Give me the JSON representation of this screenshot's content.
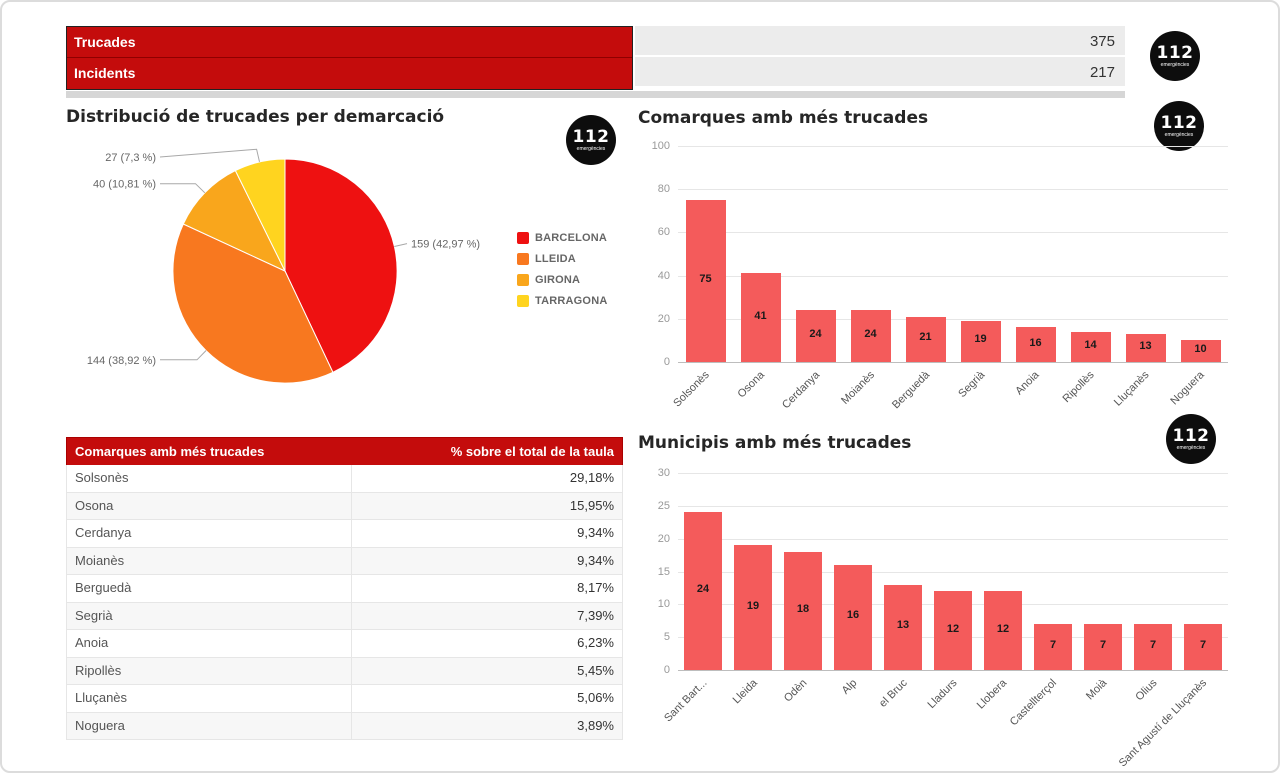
{
  "logo": {
    "text": "112",
    "subtext": "emergències"
  },
  "summary": {
    "rows": [
      {
        "label": "Trucades",
        "value": "375"
      },
      {
        "label": "Incidents",
        "value": "217"
      }
    ]
  },
  "pie_panel": {
    "title": "Distribució de trucades per demarcació"
  },
  "bar_panels": {
    "comarques_title": "Comarques amb més trucades",
    "municipis_title": "Municipis amb més trucades"
  },
  "table": {
    "headers": [
      "Comarques amb més trucades",
      "% sobre el total de la taula"
    ],
    "rows": [
      [
        "Solsonès",
        "29,18%"
      ],
      [
        "Osona",
        "15,95%"
      ],
      [
        "Cerdanya",
        "9,34%"
      ],
      [
        "Moianès",
        "9,34%"
      ],
      [
        "Berguedà",
        "8,17%"
      ],
      [
        "Segrià",
        "7,39%"
      ],
      [
        "Anoia",
        "6,23%"
      ],
      [
        "Ripollès",
        "5,45%"
      ],
      [
        "Lluçanès",
        "5,06%"
      ],
      [
        "Noguera",
        "3,89%"
      ]
    ]
  },
  "colors": {
    "header_red": "#c40c0c",
    "bar_red": "#f45b5b",
    "pie": [
      "#ee1111",
      "#f8781f",
      "#f9a61c",
      "#ffd41f"
    ]
  },
  "chart_data": [
    {
      "id": "pie-demarcacio",
      "type": "pie",
      "title": "Distribució de trucades per demarcació",
      "labels": [
        "BARCELONA",
        "LLEIDA",
        "GIRONA",
        "TARRAGONA"
      ],
      "values": [
        159,
        144,
        40,
        27
      ],
      "percent_labels": [
        "159 (42,97 %)",
        "144 (38,92 %)",
        "40 (10,81 %)",
        "27 (7,3 %)"
      ],
      "colors": [
        "#ee1111",
        "#f8781f",
        "#f9a61c",
        "#ffd41f"
      ],
      "legend_position": "right"
    },
    {
      "id": "comarques-bar",
      "type": "bar",
      "title": "Comarques amb més trucades",
      "categories": [
        "Solsonès",
        "Osona",
        "Cerdanya",
        "Moianès",
        "Berguedà",
        "Segrià",
        "Anoia",
        "Ripollès",
        "Lluçanès",
        "Noguera"
      ],
      "values": [
        75,
        41,
        24,
        24,
        21,
        19,
        16,
        14,
        13,
        10
      ],
      "ylim": [
        0,
        100
      ],
      "yticks": [
        0,
        20,
        40,
        60,
        80,
        100
      ],
      "bar_color": "#f45b5b",
      "grid": true,
      "legend": false
    },
    {
      "id": "municipis-bar",
      "type": "bar",
      "title": "Municipis amb més trucades",
      "categories": [
        "Sant Bart...",
        "Lleida",
        "Odèn",
        "Alp",
        "el Bruc",
        "Lladurs",
        "Llobera",
        "Castellterçol",
        "Moià",
        "Olius",
        "Sant Agustí de Lluçanès"
      ],
      "values": [
        24,
        19,
        18,
        16,
        13,
        12,
        12,
        7,
        7,
        7,
        7
      ],
      "ylim": [
        0,
        30
      ],
      "yticks": [
        0,
        5,
        10,
        15,
        20,
        25,
        30
      ],
      "bar_color": "#f45b5b",
      "grid": true,
      "legend": false
    }
  ]
}
